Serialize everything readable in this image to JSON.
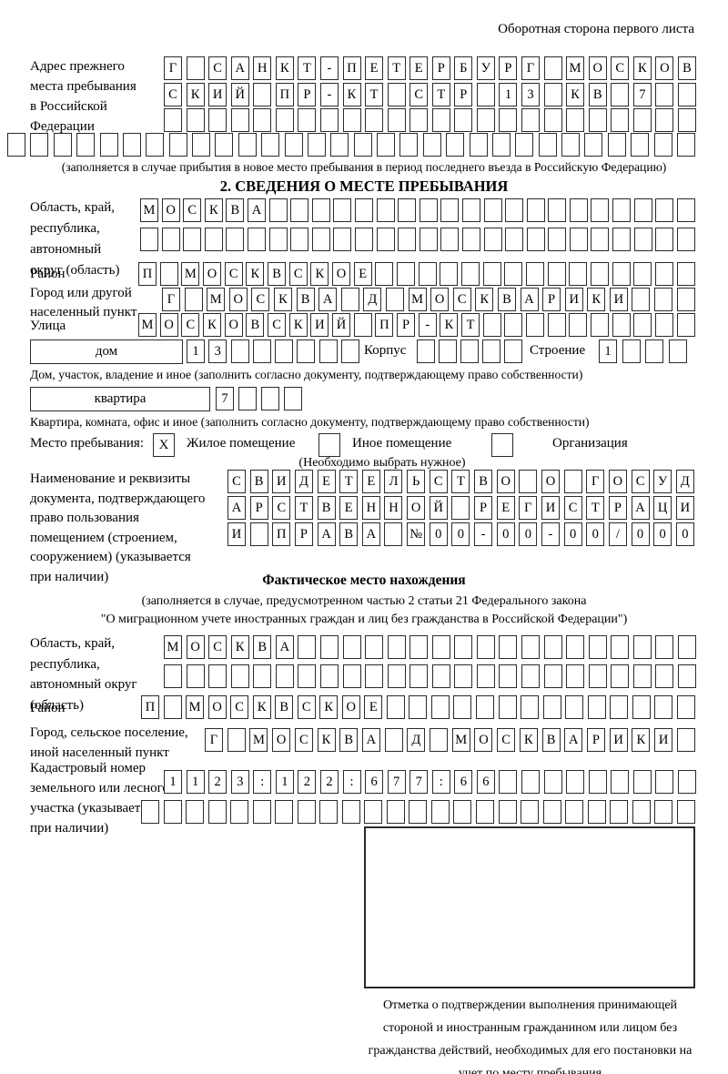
{
  "page": {
    "header_note": "Оборотная сторона первого листа"
  },
  "prev_address": {
    "label": "Адрес прежнего\nместа пребывания\nв Российской\nФедерации",
    "rows": [
      {
        "chars": "Г САНКТ-ПЕТЕРБУРГ МОСКОВ",
        "count": 24
      },
      {
        "chars": "СКИЙ ПР-КТ СТР 13 КВ 7",
        "count": 24
      },
      {
        "chars": "",
        "count": 24
      },
      {
        "chars": "",
        "count": 30
      }
    ],
    "footnote": "(заполняется в случае прибытия в новое место пребывания в период последнего въезда в Российскую Федерацию)"
  },
  "section2": {
    "title": "2. СВЕДЕНИЯ О МЕСТЕ ПРЕБЫВАНИЯ",
    "oblast": {
      "label": "Область, край,\nреспублика,\nавтономный\nокруг (область)",
      "rows": [
        {
          "chars": "МОСКВА",
          "count": 26
        },
        {
          "chars": "",
          "count": 26
        }
      ]
    },
    "raion": {
      "label": "Район",
      "row": {
        "chars": "П МОСКВСКОЕ",
        "count": 26
      }
    },
    "gorod": {
      "label": "Город или другой\nнаселенный пункт",
      "row": {
        "chars": "Г МОСКВА Д МОСКВАРИКИ",
        "count": 24
      }
    },
    "ulitsa": {
      "label": "Улица",
      "row": {
        "chars": "МОСКОВСКИЙ ПР-КТ",
        "count": 26
      }
    },
    "dom": {
      "box_label": "дом",
      "row": {
        "chars": "13",
        "count": 8
      },
      "korpus_label": "Корпус",
      "korpus_row": {
        "chars": "",
        "count": 5
      },
      "stroenie_label": "Строение",
      "stroenie_row": {
        "chars": "1",
        "count": 4
      },
      "footnote": "Дом, участок, владение и иное (заполнить согласно документу, подтверждающему право собственности)"
    },
    "kvartira": {
      "box_label": "квартира",
      "row": {
        "chars": "7",
        "count": 4
      },
      "footnote": "Квартира, комната, офис и иное (заполнить согласно документу, подтверждающему право собственности)"
    },
    "mesto": {
      "label": "Место пребывания:",
      "options": [
        {
          "label": "Жилое помещение",
          "value": "X"
        },
        {
          "label": "Иное помещение",
          "value": ""
        },
        {
          "label": "Организация",
          "value": ""
        }
      ],
      "note": "(Необходимо выбрать нужное)"
    },
    "document": {
      "label": "Наименование и реквизиты\nдокумента, подтверждающего\nправо пользования\nпомещением (строением,\nсооружением) (указывается\nпри наличии)",
      "rows": [
        {
          "chars": "СВИДЕТЕЛЬСТВО О ГОСУД",
          "count": 21
        },
        {
          "chars": "АРСТВЕННОЙ РЕГИСТРАЦИ",
          "count": 21
        },
        {
          "chars": "И ПРАВА №00-00-00/000",
          "count": 21
        }
      ]
    }
  },
  "factual": {
    "title": "Фактическое место нахождения",
    "subtitle1": "(заполняется в случае, предусмотренном частью 2 статьи 21 Федерального закона",
    "subtitle2": "\"О миграционном учете иностранных граждан и лиц без гражданства в Российской Федерации\")",
    "oblast": {
      "label": "Область, край,\nреспублика,\nавтономный округ\n(область)",
      "rows": [
        {
          "chars": "МОСКВА",
          "count": 24
        },
        {
          "chars": "",
          "count": 24
        }
      ]
    },
    "raion": {
      "label": "Район",
      "row": {
        "chars": "П МОСКВСКОЕ",
        "count": 25
      }
    },
    "gorod": {
      "label": "Город, сельское поселение,\nиной населенный пункт",
      "row": {
        "chars": "Г МОСКВА Д МОСКВАРИКИ",
        "count": 22
      }
    },
    "kadastr": {
      "label": "Кадастровый номер\nземельного или лесного\nучастка (указывается\nпри наличии)",
      "rows": [
        {
          "chars": "1123:122:677:66",
          "count": 24
        },
        {
          "chars": "",
          "count": 25
        }
      ]
    },
    "stamp_note": "Отметка о подтверждении выполнения принимающей стороной и иностранным гражданином или лицом без гражданства действий, необходимых для его постановки на учет по месту пребывания"
  }
}
